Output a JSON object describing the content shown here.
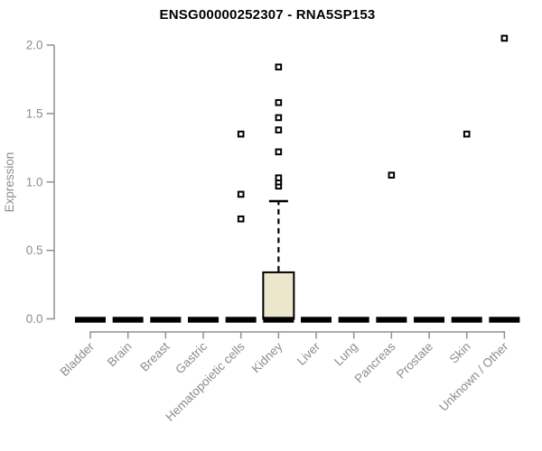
{
  "title": "ENSG00000252307 - RNA5SP153",
  "chart_data": {
    "type": "boxplot",
    "title": "ENSG00000252307 - RNA5SP153",
    "xlabel": "",
    "ylabel": "Expression",
    "ylim": [
      0.0,
      2.0
    ],
    "yticks": [
      0.0,
      0.5,
      1.0,
      1.5,
      2.0
    ],
    "grid": "off",
    "legend": "none",
    "categories": [
      "Bladder",
      "Brain",
      "Breast",
      "Gastric",
      "Hematopoietic cells",
      "Kidney",
      "Liver",
      "Lung",
      "Pancreas",
      "Prostate",
      "Skin",
      "Unknown / Other"
    ],
    "series": [
      {
        "name": "Bladder",
        "median": 0.0,
        "q1": 0.0,
        "q3": 0.0,
        "whisker_low": 0.0,
        "whisker_high": 0.0,
        "outliers": []
      },
      {
        "name": "Brain",
        "median": 0.0,
        "q1": 0.0,
        "q3": 0.0,
        "whisker_low": 0.0,
        "whisker_high": 0.0,
        "outliers": []
      },
      {
        "name": "Breast",
        "median": 0.0,
        "q1": 0.0,
        "q3": 0.0,
        "whisker_low": 0.0,
        "whisker_high": 0.0,
        "outliers": []
      },
      {
        "name": "Gastric",
        "median": 0.0,
        "q1": 0.0,
        "q3": 0.0,
        "whisker_low": 0.0,
        "whisker_high": 0.0,
        "outliers": []
      },
      {
        "name": "Hematopoietic cells",
        "median": 0.0,
        "q1": 0.0,
        "q3": 0.0,
        "whisker_low": 0.0,
        "whisker_high": 0.0,
        "outliers": [
          0.73,
          0.91,
          1.35
        ]
      },
      {
        "name": "Kidney",
        "median": 0.0,
        "q1": 0.0,
        "q3": 0.34,
        "whisker_low": 0.0,
        "whisker_high": 0.86,
        "outliers": [
          0.97,
          1.0,
          1.03,
          1.22,
          1.38,
          1.47,
          1.58,
          1.84
        ]
      },
      {
        "name": "Liver",
        "median": 0.0,
        "q1": 0.0,
        "q3": 0.0,
        "whisker_low": 0.0,
        "whisker_high": 0.0,
        "outliers": []
      },
      {
        "name": "Lung",
        "median": 0.0,
        "q1": 0.0,
        "q3": 0.0,
        "whisker_low": 0.0,
        "whisker_high": 0.0,
        "outliers": []
      },
      {
        "name": "Pancreas",
        "median": 0.0,
        "q1": 0.0,
        "q3": 0.0,
        "whisker_low": 0.0,
        "whisker_high": 0.0,
        "outliers": [
          1.05
        ]
      },
      {
        "name": "Prostate",
        "median": 0.0,
        "q1": 0.0,
        "q3": 0.0,
        "whisker_low": 0.0,
        "whisker_high": 0.0,
        "outliers": []
      },
      {
        "name": "Skin",
        "median": 0.0,
        "q1": 0.0,
        "q3": 0.0,
        "whisker_low": 0.0,
        "whisker_high": 0.0,
        "outliers": [
          1.35
        ]
      },
      {
        "name": "Unknown / Other",
        "median": 0.0,
        "q1": 0.0,
        "q3": 0.0,
        "whisker_low": 0.0,
        "whisker_high": 0.0,
        "outliers": [
          2.05
        ]
      }
    ],
    "colors": {
      "box_fill": "#ECE6CC",
      "box_stroke": "#000000",
      "median": "#000000",
      "whisker": "#000000",
      "outlier_stroke": "#000000",
      "outlier_fill": "#ffffff",
      "axis_line": "#909090",
      "tick_label": "#8c8c8c",
      "title": "#000000"
    }
  }
}
